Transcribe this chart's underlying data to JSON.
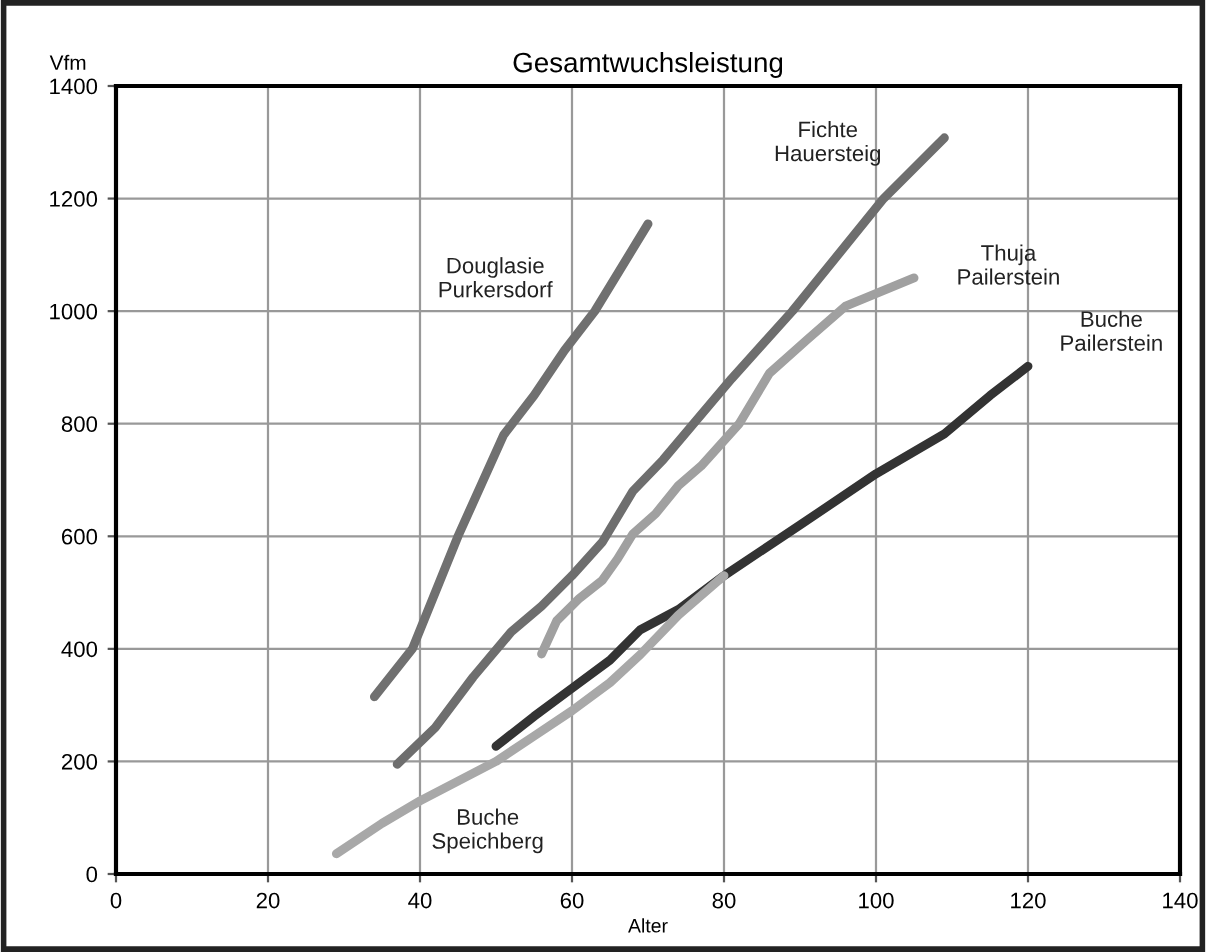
{
  "chart_data": {
    "type": "line",
    "title": "Gesamtwuchsleistung",
    "xlabel": "Alter",
    "ylabel": "Vfm",
    "xlim": [
      0,
      140
    ],
    "xticks": [
      0,
      20,
      40,
      60,
      80,
      100,
      120,
      140
    ],
    "ylim": [
      0,
      1400
    ],
    "yticks": [
      0,
      200,
      400,
      600,
      800,
      1000,
      1200,
      1400
    ],
    "grid": true,
    "legend": false,
    "marker": "none",
    "line_style": "solid",
    "series": [
      {
        "name": "Douglasie\nPurkersdorf",
        "color": "#707070",
        "x": [
          34,
          39,
          45,
          51,
          55,
          59,
          63,
          70
        ],
        "values": [
          315,
          400,
          600,
          780,
          850,
          930,
          1000,
          1155
        ]
      },
      {
        "name": "Fichte\nHauersteig",
        "color": "#6e6e6e",
        "x": [
          37,
          42,
          47,
          52,
          56,
          60,
          64,
          68,
          72,
          76,
          81,
          89,
          101,
          109
        ],
        "values": [
          195,
          260,
          350,
          430,
          476,
          530,
          590,
          680,
          736,
          800,
          880,
          1000,
          1200,
          1308
        ]
      },
      {
        "name": "Thuja\nPailerstein",
        "color": "#a0a0a0",
        "x": [
          56,
          58,
          61,
          64,
          66,
          68,
          71,
          74,
          77,
          82,
          86,
          91,
          96,
          105
        ],
        "values": [
          391,
          450,
          490,
          522,
          560,
          604,
          640,
          690,
          725,
          800,
          890,
          950,
          1009,
          1059
        ]
      },
      {
        "name": "Buche\nPailerstein",
        "color": "#333333",
        "x": [
          50,
          55,
          60,
          65,
          69,
          74,
          80,
          90,
          100,
          109,
          115,
          120
        ],
        "values": [
          227,
          280,
          330,
          380,
          434,
          470,
          530,
          620,
          711,
          782,
          850,
          902
        ]
      },
      {
        "name": "Buche\nSpeichberg",
        "color": "#a8a8a8",
        "x": [
          29,
          35,
          40,
          45,
          50,
          55,
          60,
          65,
          69,
          74,
          80
        ],
        "values": [
          36,
          90,
          130,
          165,
          200,
          245,
          290,
          340,
          390,
          460,
          530
        ]
      }
    ]
  }
}
